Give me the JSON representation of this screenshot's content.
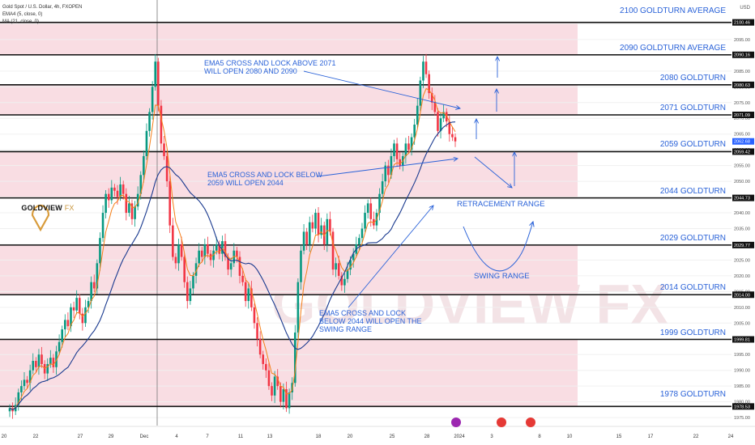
{
  "header": {
    "symbol_line": "Gold Spot / U.S. Dollar, 4h, FXOPEN",
    "indicators": [
      "EMA4 (5, close, 0)",
      "MA (21, close, 0)"
    ],
    "currency": "USD"
  },
  "logo": {
    "brand_main": "GOLDVIEW",
    "brand_suffix": "FX"
  },
  "colors": {
    "up": "#089981",
    "down": "#f23645",
    "ema": "#f57f17",
    "ma": "#1a3a8f",
    "zone_fill": "#f9dde3",
    "annotation": "#2a62d8",
    "level_line": "#111111"
  },
  "annotations": [
    {
      "text": "EMA5 CROSS AND LOCK ABOVE 2071\nWILL OPEN 2080 AND 2090"
    },
    {
      "text": "EMA5 CROSS AND LOCK BELOW\n2059 WILL OPEN 2044"
    },
    {
      "text": "RETRACEMENT RANGE"
    },
    {
      "text": "SWING RANGE"
    },
    {
      "text": "EMA5 CROSS AND LOCK\nBELOW 2044 WILL OPEN THE\nSWING RANGE"
    }
  ],
  "chart_data": {
    "type": "candlestick",
    "title": "Gold Spot / U.S. Dollar, 4h, FXOPEN",
    "ylim": [
      1972,
      2106
    ],
    "yticks": [
      1975.0,
      1980.0,
      1985.0,
      1990.0,
      1995.0,
      2000.0,
      2005.0,
      2010.0,
      2015.0,
      2020.0,
      2025.0,
      2030.0,
      2035.0,
      2040.0,
      2045.0,
      2050.0,
      2055.0,
      2060.0,
      2065.0,
      2070.0,
      2075.0,
      2080.0,
      2085.0,
      2090.0,
      2095.0,
      2100.0
    ],
    "xticks": [
      "20",
      "22",
      "27",
      "29",
      "Dec",
      "4",
      "7",
      "11",
      "13",
      "18",
      "20",
      "25",
      "28",
      "2024",
      "3",
      "8",
      "10",
      "15",
      "17",
      "22",
      "24"
    ],
    "price_tags": [
      2100.46,
      2090.16,
      2080.63,
      2071.09,
      2062.68,
      2059.42,
      2044.73,
      2029.77,
      2014.0,
      1999.81,
      1978.53
    ],
    "current_price": 2062.68,
    "levels": [
      {
        "label": "2100 GOLDTURN AVERAGE",
        "value": 2100.46
      },
      {
        "label": "2090 GOLDTURN AVERAGE",
        "value": 2090.16
      },
      {
        "label": "2080 GOLDTURN",
        "value": 2080.63
      },
      {
        "label": "2071 GOLDTURN",
        "value": 2071.09
      },
      {
        "label": "2059 GOLDTURN",
        "value": 2059.42
      },
      {
        "label": "2044 GOLDTURN",
        "value": 2044.73
      },
      {
        "label": "2029 GOLDTURN",
        "value": 2029.77
      },
      {
        "label": "2014 GOLDTURN",
        "value": 2014.0
      },
      {
        "label": "1999 GOLDTURN",
        "value": 1999.81
      },
      {
        "label": "1978 GOLDTURN",
        "value": 1978.53
      }
    ],
    "zones": [
      [
        2090.16,
        2100.46
      ],
      [
        2071.09,
        2080.63
      ],
      [
        2044.73,
        2059.42
      ],
      [
        2014.0,
        2029.77
      ],
      [
        1978.53,
        1999.81
      ]
    ],
    "closes": [
      1978,
      1977,
      1979,
      1983,
      1985,
      1987,
      1986,
      1990,
      1993,
      1991,
      1995,
      1992,
      1989,
      1992,
      1994,
      1991,
      1996,
      1999,
      2003,
      2006,
      2004,
      2010,
      2009,
      2013,
      2008,
      2005,
      2010,
      2012,
      2018,
      2016,
      2024,
      2032,
      2040,
      2046,
      2044,
      2048,
      2047,
      2045,
      2049,
      2046,
      2040,
      2043,
      2038,
      2042,
      2046,
      2052,
      2058,
      2066,
      2072,
      2080,
      2088,
      2074,
      2062,
      2058,
      2050,
      2036,
      2026,
      2024,
      2030,
      2026,
      2018,
      2012,
      2016,
      2020,
      2024,
      2028,
      2026,
      2030,
      2027,
      2025,
      2028,
      2030,
      2027,
      2031,
      2026,
      2022,
      2024,
      2028,
      2026,
      2020,
      2018,
      2012,
      2016,
      2010,
      2005,
      2000,
      1995,
      1992,
      1990,
      1985,
      1982,
      1988,
      1985,
      1980,
      1984,
      1978,
      1983,
      1986,
      2002,
      2018,
      2028,
      2034,
      2030,
      2037,
      2035,
      2040,
      2033,
      2036,
      2030,
      2038,
      2034,
      2022,
      2024,
      2020,
      2017,
      2019,
      2022,
      2025,
      2027,
      2030,
      2032,
      2035,
      2040,
      2043,
      2038,
      2036,
      2040,
      2046,
      2050,
      2055,
      2052,
      2058,
      2062,
      2057,
      2055,
      2058,
      2062,
      2060,
      2064,
      2068,
      2074,
      2082,
      2088,
      2084,
      2078,
      2075,
      2072,
      2066,
      2070,
      2072,
      2069,
      2065,
      2064,
      2062.68
    ]
  }
}
